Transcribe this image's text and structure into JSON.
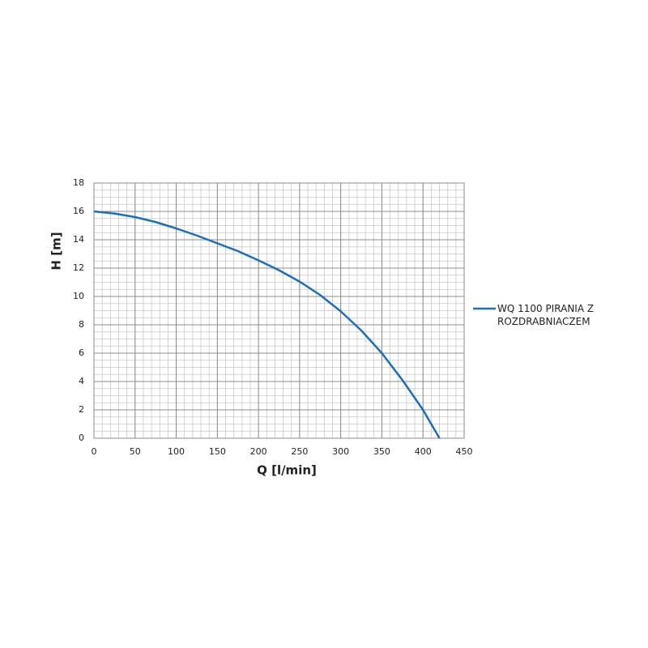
{
  "chart_data": {
    "type": "line",
    "xlabel": "Q [l/min]",
    "ylabel": "H [m]",
    "x": [
      0,
      25,
      50,
      75,
      100,
      125,
      150,
      175,
      200,
      225,
      250,
      275,
      300,
      325,
      350,
      375,
      400,
      420
    ],
    "series": [
      {
        "name": "WQ 1100 PIRANIA Z ROZDRABNIACZEM",
        "color": "#1a6fc0",
        "values": [
          16,
          15.85,
          15.6,
          15.25,
          14.8,
          14.3,
          13.75,
          13.2,
          12.55,
          11.85,
          11.05,
          10.1,
          8.95,
          7.6,
          6.0,
          4.1,
          2.0,
          0
        ]
      }
    ],
    "xlim": [
      0,
      450
    ],
    "xticks": [
      0,
      50,
      100,
      150,
      200,
      250,
      300,
      350,
      400,
      450
    ],
    "ylim": [
      0,
      18
    ],
    "yticks": [
      0,
      2,
      4,
      6,
      8,
      10,
      12,
      14,
      16,
      18
    ],
    "grid": true,
    "minor_grid": {
      "x": 10,
      "y": 0.5
    },
    "legend": "right"
  }
}
